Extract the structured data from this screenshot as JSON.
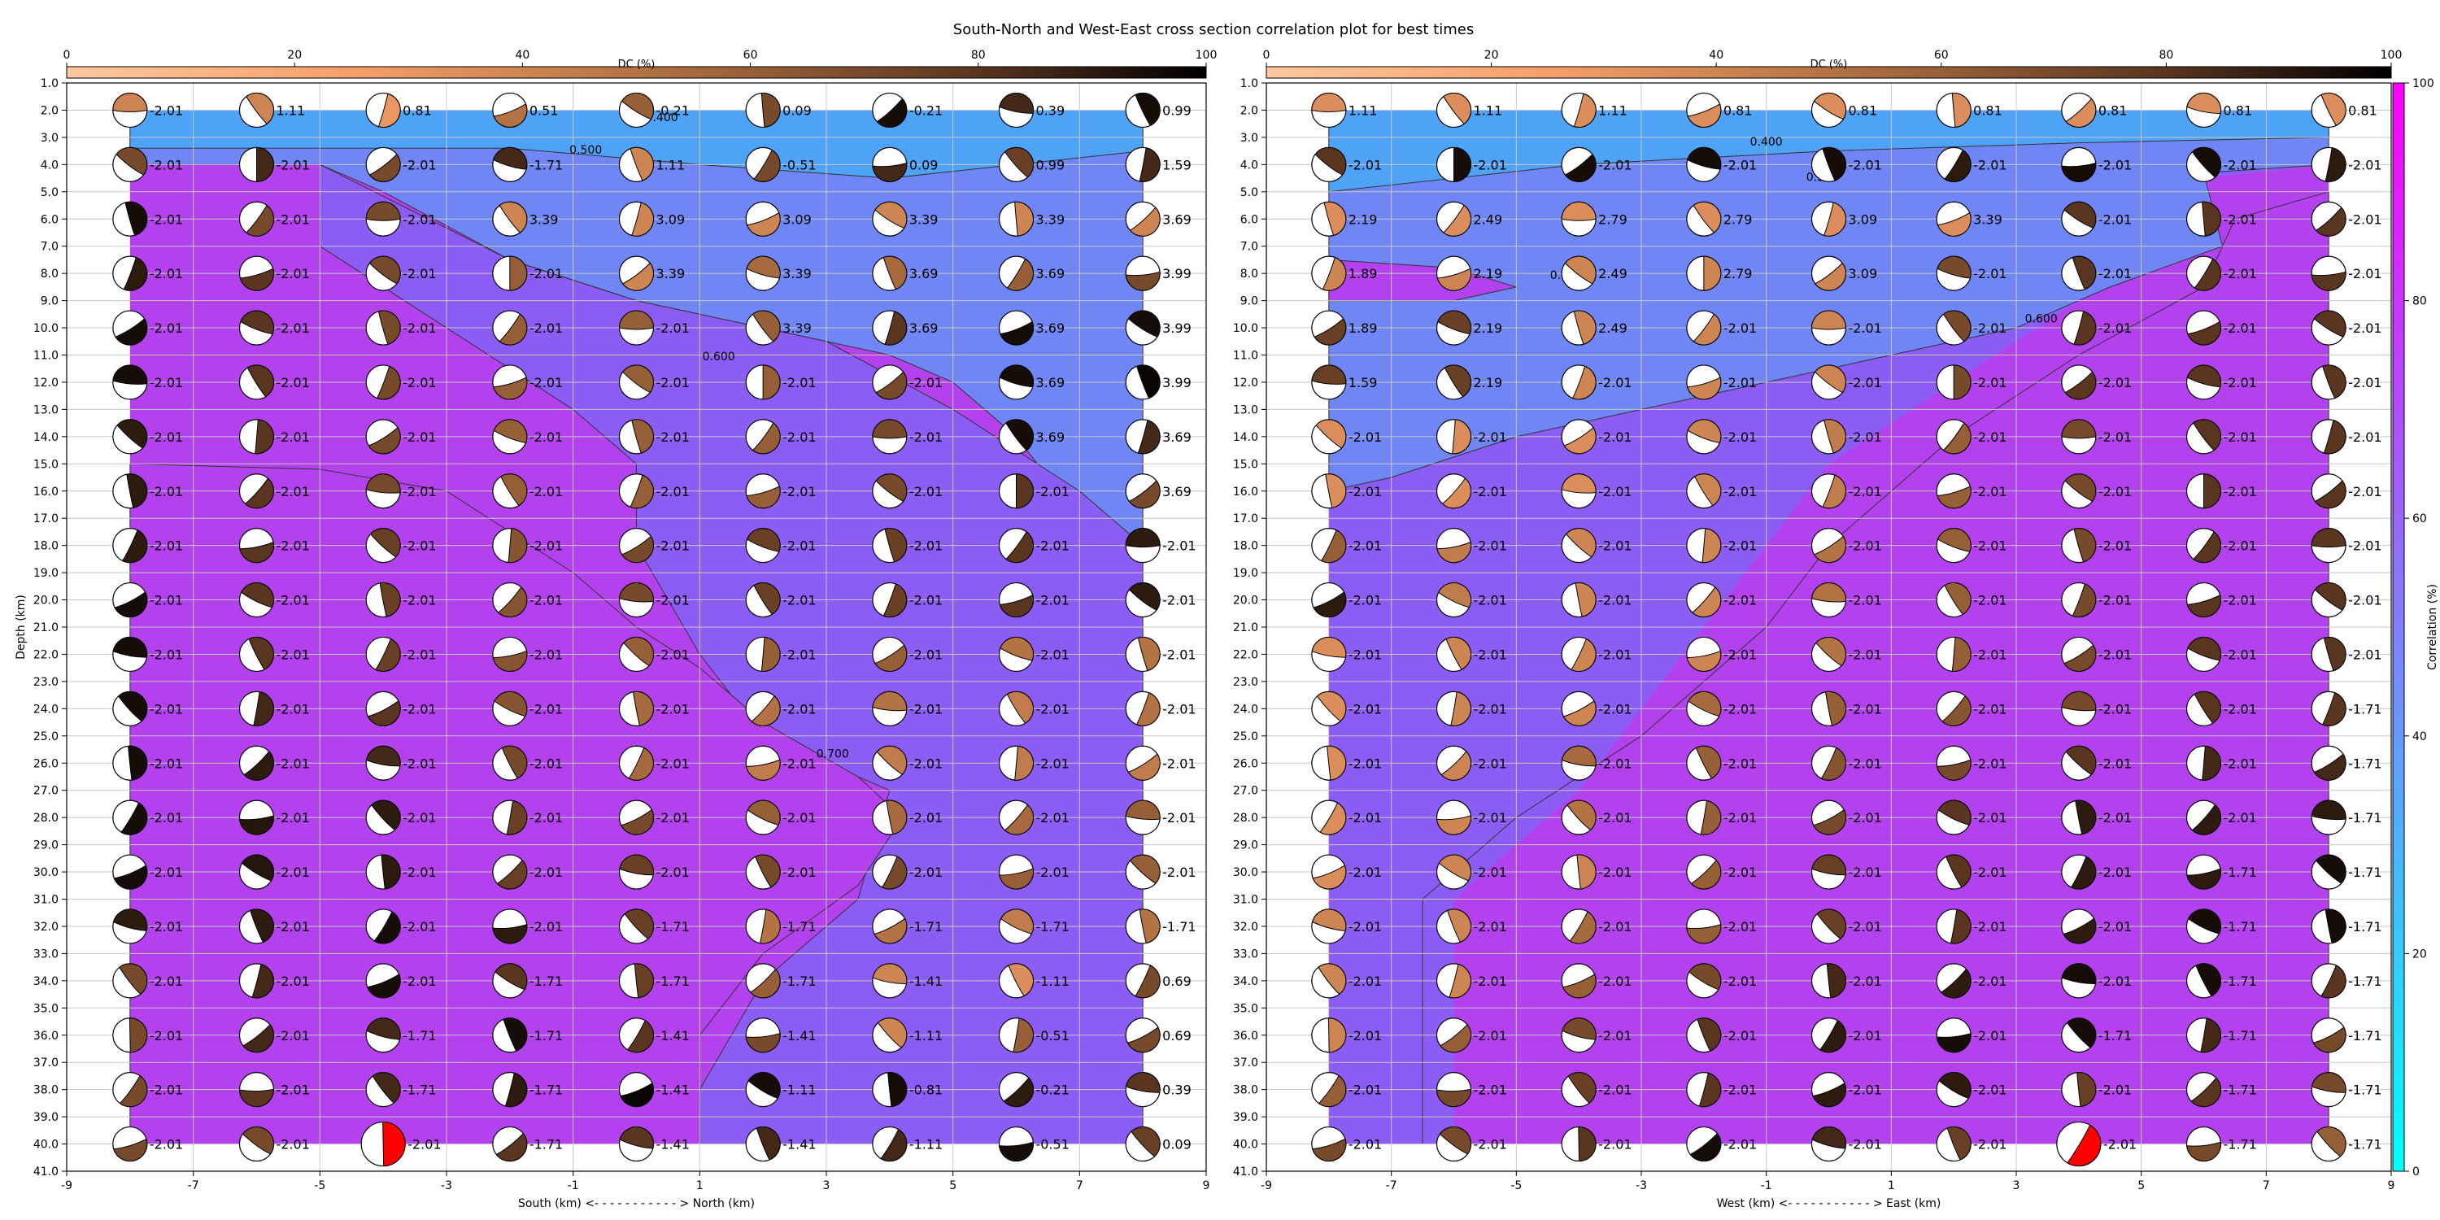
{
  "title": "South-North and West-East cross section correlation plot for best times",
  "chart_data": [
    {
      "type": "contour",
      "panel": "south-north",
      "xlabel": "South (km) <- - - - - - - - - - - > North (km)",
      "ylabel": "Depth (km)",
      "xlim": [
        -9,
        9
      ],
      "ylim": [
        41,
        1
      ],
      "x_ticks": [
        -9,
        -7,
        -5,
        -3,
        -1,
        1,
        3,
        5,
        7,
        9
      ],
      "y_ticks": [
        1.0,
        2.0,
        3.0,
        4.0,
        5.0,
        6.0,
        7.0,
        8.0,
        9.0,
        10.0,
        11.0,
        12.0,
        13.0,
        14.0,
        15.0,
        16.0,
        17.0,
        18.0,
        19.0,
        20.0,
        21.0,
        22.0,
        23.0,
        24.0,
        25.0,
        26.0,
        27.0,
        28.0,
        29.0,
        30.0,
        31.0,
        32.0,
        33.0,
        34.0,
        35.0,
        36.0,
        37.0,
        38.0,
        39.0,
        40.0,
        41.0
      ],
      "dc_colorbar": {
        "label": "DC (%)",
        "ticks": [
          0,
          20,
          40,
          60,
          80,
          100
        ]
      },
      "contour_labels": [
        "0.400",
        "0.500",
        "0.600",
        "0.700"
      ],
      "grid": true,
      "x": [
        -8,
        -6,
        -4,
        -2,
        0,
        2,
        4,
        6,
        8
      ],
      "depths": [
        2,
        4,
        6,
        8,
        10,
        12,
        14,
        16,
        18,
        20,
        22,
        24,
        26,
        28,
        30,
        32,
        34,
        36,
        38,
        40
      ],
      "time_labels": [
        [
          "-2.01",
          "1.11",
          "0.81",
          "0.51",
          "-0.21",
          "0.09",
          "-0.21",
          "0.39",
          "0.99"
        ],
        [
          "-2.01",
          "-2.01",
          "-2.01",
          "-1.71",
          "1.11",
          "-0.51",
          "0.09",
          "0.99",
          "1.59"
        ],
        [
          "-2.01",
          "-2.01",
          "-2.01",
          "3.39",
          "3.09",
          "3.09",
          "3.39",
          "3.39",
          "3.69"
        ],
        [
          "-2.01",
          "-2.01",
          "-2.01",
          "-2.01",
          "3.39",
          "3.39",
          "3.69",
          "3.69",
          "3.99"
        ],
        [
          "-2.01",
          "-2.01",
          "-2.01",
          "-2.01",
          "-2.01",
          "3.39",
          "3.69",
          "3.69",
          "3.99"
        ],
        [
          "-2.01",
          "-2.01",
          "-2.01",
          "-2.01",
          "-2.01",
          "-2.01",
          "-2.01",
          "3.69",
          "3.99"
        ],
        [
          "-2.01",
          "-2.01",
          "-2.01",
          "-2.01",
          "-2.01",
          "-2.01",
          "-2.01",
          "3.69",
          "3.69"
        ],
        [
          "-2.01",
          "-2.01",
          "-2.01",
          "-2.01",
          "-2.01",
          "-2.01",
          "-2.01",
          "-2.01",
          "3.69"
        ],
        [
          "-2.01",
          "-2.01",
          "-2.01",
          "-2.01",
          "-2.01",
          "-2.01",
          "-2.01",
          "-2.01",
          "-2.01"
        ],
        [
          "-2.01",
          "-2.01",
          "-2.01",
          "-2.01",
          "-2.01",
          "-2.01",
          "-2.01",
          "-2.01",
          "-2.01"
        ],
        [
          "-2.01",
          "-2.01",
          "-2.01",
          "-2.01",
          "-2.01",
          "-2.01",
          "-2.01",
          "-2.01",
          "-2.01"
        ],
        [
          "-2.01",
          "-2.01",
          "-2.01",
          "-2.01",
          "-2.01",
          "-2.01",
          "-2.01",
          "-2.01",
          "-2.01"
        ],
        [
          "-2.01",
          "-2.01",
          "-2.01",
          "-2.01",
          "-2.01",
          "-2.01",
          "-2.01",
          "-2.01",
          "-2.01"
        ],
        [
          "-2.01",
          "-2.01",
          "-2.01",
          "-2.01",
          "-2.01",
          "-2.01",
          "-2.01",
          "-2.01",
          "-2.01"
        ],
        [
          "-2.01",
          "-2.01",
          "-2.01",
          "-2.01",
          "-2.01",
          "-2.01",
          "-2.01",
          "-2.01",
          "-2.01"
        ],
        [
          "-2.01",
          "-2.01",
          "-2.01",
          "-2.01",
          "-1.71",
          "-1.71",
          "-1.71",
          "-1.71",
          "-1.71"
        ],
        [
          "-2.01",
          "-2.01",
          "-2.01",
          "-1.71",
          "-1.71",
          "-1.71",
          "-1.41",
          "-1.11",
          "0.69"
        ],
        [
          "-2.01",
          "-2.01",
          "-1.71",
          "-1.71",
          "-1.41",
          "-1.41",
          "-1.11",
          "-0.51",
          "0.69"
        ],
        [
          "-2.01",
          "-2.01",
          "-1.71",
          "-1.71",
          "-1.41",
          "-1.11",
          "-0.81",
          "-0.21",
          "0.39"
        ],
        [
          "-2.01",
          "-2.01",
          "-2.01",
          "-1.71",
          "-1.41",
          "-1.41",
          "-1.11",
          "-0.51",
          "0.09"
        ]
      ],
      "dc_percent": [
        [
          40,
          40,
          30,
          50,
          60,
          70,
          95,
          85,
          95
        ],
        [
          70,
          85,
          70,
          85,
          40,
          70,
          85,
          75,
          85
        ],
        [
          95,
          70,
          70,
          40,
          40,
          40,
          40,
          40,
          40
        ],
        [
          90,
          80,
          70,
          60,
          40,
          55,
          55,
          60,
          70
        ],
        [
          95,
          80,
          70,
          60,
          60,
          60,
          80,
          95,
          95
        ],
        [
          95,
          80,
          70,
          60,
          60,
          60,
          70,
          95,
          98
        ],
        [
          90,
          80,
          70,
          60,
          60,
          60,
          70,
          95,
          85
        ],
        [
          90,
          80,
          70,
          60,
          60,
          60,
          70,
          80,
          70
        ],
        [
          90,
          80,
          75,
          65,
          70,
          75,
          75,
          80,
          90
        ],
        [
          95,
          80,
          75,
          65,
          70,
          75,
          75,
          80,
          90
        ],
        [
          95,
          80,
          75,
          65,
          60,
          60,
          60,
          50,
          50
        ],
        [
          95,
          85,
          80,
          65,
          55,
          50,
          50,
          45,
          50
        ],
        [
          95,
          90,
          85,
          70,
          55,
          45,
          45,
          45,
          45
        ],
        [
          95,
          92,
          90,
          75,
          70,
          60,
          55,
          55,
          60
        ],
        [
          95,
          92,
          90,
          75,
          75,
          70,
          70,
          60,
          60
        ],
        [
          90,
          90,
          95,
          90,
          75,
          50,
          50,
          45,
          50
        ],
        [
          70,
          85,
          95,
          80,
          75,
          60,
          40,
          35,
          70
        ],
        [
          70,
          85,
          85,
          95,
          80,
          70,
          40,
          60,
          70
        ],
        [
          70,
          80,
          85,
          90,
          98,
          95,
          95,
          90,
          80
        ],
        [
          70,
          70,
          5,
          80,
          80,
          85,
          85,
          95,
          75
        ]
      ],
      "highlight": {
        "x": -4,
        "depth": 40,
        "color": "#ff0000"
      }
    },
    {
      "type": "contour",
      "panel": "west-east",
      "xlabel": "West (km) <- - - - - - - - - - - > East (km)",
      "ylabel": "Depth (km)",
      "xlim": [
        -9,
        9
      ],
      "ylim": [
        41,
        1
      ],
      "x_ticks": [
        -9,
        -7,
        -5,
        -3,
        -1,
        1,
        3,
        5,
        7,
        9
      ],
      "dc_colorbar": {
        "label": "DC (%)",
        "ticks": [
          0,
          20,
          40,
          60,
          80,
          100
        ]
      },
      "correlation_colorbar": {
        "label": "Correlation (%)",
        "ticks": [
          0,
          20,
          40,
          60,
          80,
          100
        ]
      },
      "contour_labels": [
        "0.400",
        "0.500",
        "0.600",
        "0.700"
      ],
      "grid": true,
      "x": [
        -8,
        -6,
        -4,
        -2,
        0,
        2,
        4,
        6,
        8
      ],
      "depths": [
        2,
        4,
        6,
        8,
        10,
        12,
        14,
        16,
        18,
        20,
        22,
        24,
        26,
        28,
        30,
        32,
        34,
        36,
        38,
        40
      ],
      "time_labels": [
        [
          "1.11",
          "1.11",
          "1.11",
          "0.81",
          "0.81",
          "0.81",
          "0.81",
          "0.81",
          "0.81"
        ],
        [
          "-2.01",
          "-2.01",
          "-2.01",
          "-2.01",
          "-2.01",
          "-2.01",
          "-2.01",
          "-2.01",
          "-2.01"
        ],
        [
          "2.19",
          "2.49",
          "2.79",
          "2.79",
          "3.09",
          "3.39",
          "-2.01",
          "-2.01",
          "-2.01"
        ],
        [
          "1.89",
          "2.19",
          "2.49",
          "2.79",
          "3.09",
          "-2.01",
          "-2.01",
          "-2.01",
          "-2.01"
        ],
        [
          "1.89",
          "2.19",
          "2.49",
          "-2.01",
          "-2.01",
          "-2.01",
          "-2.01",
          "-2.01",
          "-2.01"
        ],
        [
          "1.59",
          "2.19",
          "-2.01",
          "-2.01",
          "-2.01",
          "-2.01",
          "-2.01",
          "-2.01",
          "-2.01"
        ],
        [
          "-2.01",
          "-2.01",
          "-2.01",
          "-2.01",
          "-2.01",
          "-2.01",
          "-2.01",
          "-2.01",
          "-2.01"
        ],
        [
          "-2.01",
          "-2.01",
          "-2.01",
          "-2.01",
          "-2.01",
          "-2.01",
          "-2.01",
          "-2.01",
          "-2.01"
        ],
        [
          "-2.01",
          "-2.01",
          "-2.01",
          "-2.01",
          "-2.01",
          "-2.01",
          "-2.01",
          "-2.01",
          "-2.01"
        ],
        [
          "-2.01",
          "-2.01",
          "-2.01",
          "-2.01",
          "-2.01",
          "-2.01",
          "-2.01",
          "-2.01",
          "-2.01"
        ],
        [
          "-2.01",
          "-2.01",
          "-2.01",
          "-2.01",
          "-2.01",
          "-2.01",
          "-2.01",
          "-2.01",
          "-2.01"
        ],
        [
          "-2.01",
          "-2.01",
          "-2.01",
          "-2.01",
          "-2.01",
          "-2.01",
          "-2.01",
          "-2.01",
          "-1.71"
        ],
        [
          "-2.01",
          "-2.01",
          "-2.01",
          "-2.01",
          "-2.01",
          "-2.01",
          "-2.01",
          "-2.01",
          "-1.71"
        ],
        [
          "-2.01",
          "-2.01",
          "-2.01",
          "-2.01",
          "-2.01",
          "-2.01",
          "-2.01",
          "-2.01",
          "-1.71"
        ],
        [
          "-2.01",
          "-2.01",
          "-2.01",
          "-2.01",
          "-2.01",
          "-2.01",
          "-2.01",
          "-1.71",
          "-1.71"
        ],
        [
          "-2.01",
          "-2.01",
          "-2.01",
          "-2.01",
          "-2.01",
          "-2.01",
          "-2.01",
          "-1.71",
          "-1.71"
        ],
        [
          "-2.01",
          "-2.01",
          "-2.01",
          "-2.01",
          "-2.01",
          "-2.01",
          "-2.01",
          "-1.71",
          "-1.71"
        ],
        [
          "-2.01",
          "-2.01",
          "-2.01",
          "-2.01",
          "-2.01",
          "-2.01",
          "-1.71",
          "-1.71",
          "-1.71"
        ],
        [
          "-2.01",
          "-2.01",
          "-2.01",
          "-2.01",
          "-2.01",
          "-2.01",
          "-2.01",
          "-1.71",
          "-1.71"
        ],
        [
          "-2.01",
          "-2.01",
          "-2.01",
          "-2.01",
          "-2.01",
          "-2.01",
          "-2.01",
          "-1.71",
          "-1.71"
        ]
      ],
      "dc_percent": [
        [
          35,
          35,
          35,
          35,
          35,
          35,
          35,
          35,
          35
        ],
        [
          80,
          95,
          95,
          95,
          95,
          90,
          95,
          95,
          90
        ],
        [
          35,
          35,
          35,
          35,
          35,
          35,
          80,
          80,
          80
        ],
        [
          40,
          40,
          40,
          40,
          40,
          70,
          80,
          80,
          80
        ],
        [
          75,
          75,
          40,
          40,
          40,
          70,
          80,
          80,
          80
        ],
        [
          75,
          75,
          40,
          40,
          40,
          70,
          80,
          80,
          80
        ],
        [
          35,
          35,
          35,
          40,
          45,
          60,
          70,
          80,
          80
        ],
        [
          35,
          35,
          35,
          40,
          45,
          60,
          70,
          80,
          80
        ],
        [
          60,
          45,
          40,
          40,
          50,
          60,
          70,
          80,
          80
        ],
        [
          90,
          45,
          40,
          40,
          50,
          60,
          70,
          80,
          80
        ],
        [
          35,
          40,
          40,
          40,
          50,
          60,
          70,
          80,
          80
        ],
        [
          35,
          40,
          40,
          55,
          60,
          65,
          70,
          80,
          80
        ],
        [
          35,
          40,
          55,
          60,
          65,
          70,
          80,
          85,
          85
        ],
        [
          35,
          40,
          50,
          60,
          70,
          80,
          90,
          90,
          90
        ],
        [
          35,
          40,
          40,
          60,
          75,
          80,
          90,
          90,
          95
        ],
        [
          40,
          40,
          55,
          60,
          75,
          80,
          90,
          95,
          95
        ],
        [
          40,
          40,
          60,
          70,
          85,
          90,
          95,
          95,
          80
        ],
        [
          40,
          60,
          70,
          80,
          90,
          95,
          95,
          85,
          70
        ],
        [
          60,
          70,
          75,
          80,
          90,
          90,
          75,
          80,
          70
        ],
        [
          70,
          70,
          80,
          95,
          85,
          75,
          5,
          70,
          60
        ]
      ],
      "highlight": {
        "x": 4,
        "depth": 40,
        "color": "#ff0000"
      }
    }
  ]
}
